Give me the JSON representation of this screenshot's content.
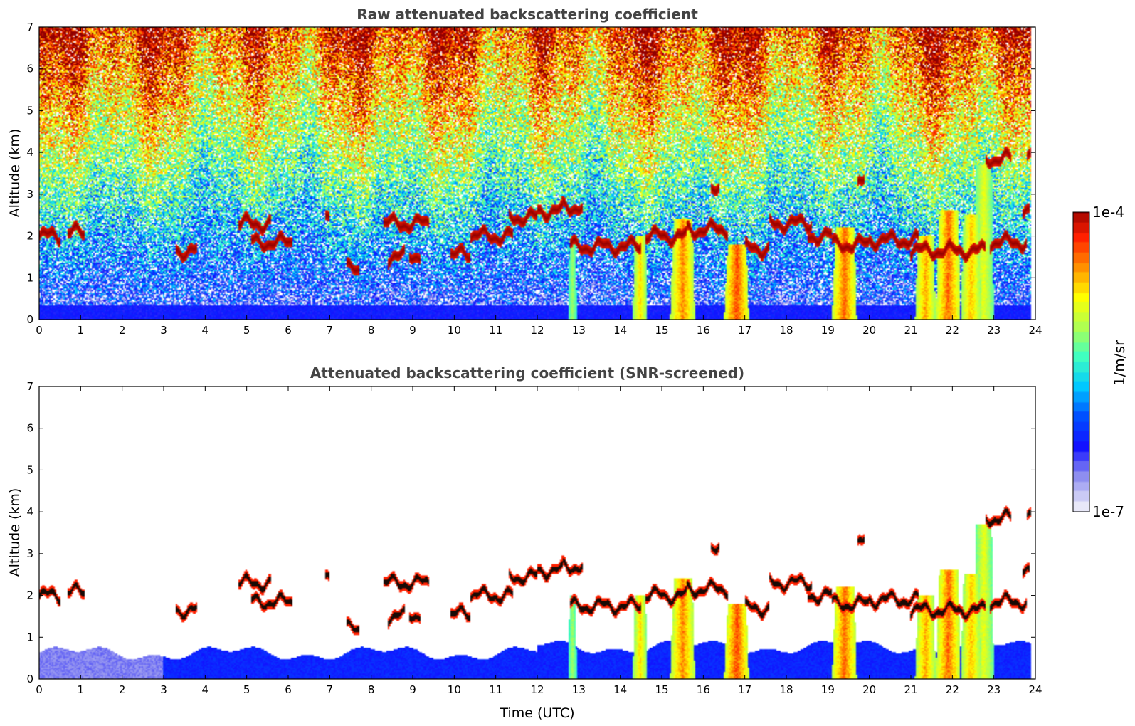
{
  "chart_data": [
    {
      "type": "heatmap",
      "title": "Raw attenuated backscattering coefficient",
      "xlabel": "",
      "ylabel": "Altitude (km)",
      "xlim": [
        0,
        24
      ],
      "ylim": [
        0,
        7
      ],
      "xticks": [
        0,
        1,
        2,
        3,
        4,
        5,
        6,
        7,
        8,
        9,
        10,
        11,
        12,
        13,
        14,
        15,
        16,
        17,
        18,
        19,
        20,
        21,
        22,
        23,
        24
      ],
      "yticks": [
        0,
        1,
        2,
        3,
        4,
        5,
        6,
        7
      ],
      "screened": false,
      "features": {
        "cloud_layers": [
          {
            "t0": 0.0,
            "t1": 0.5,
            "alt": 2.0
          },
          {
            "t0": 0.7,
            "t1": 1.1,
            "alt": 2.08
          },
          {
            "t0": 3.3,
            "t1": 3.8,
            "alt": 1.65
          },
          {
            "t0": 4.8,
            "t1": 5.6,
            "alt": 2.3
          },
          {
            "t0": 5.1,
            "t1": 6.1,
            "alt": 1.85
          },
          {
            "t0": 6.9,
            "t1": 7.0,
            "alt": 2.4
          },
          {
            "t0": 7.4,
            "t1": 7.7,
            "alt": 1.2
          },
          {
            "t0": 8.3,
            "t1": 9.4,
            "alt": 2.3
          },
          {
            "t0": 8.4,
            "t1": 8.8,
            "alt": 1.5
          },
          {
            "t0": 8.9,
            "t1": 9.2,
            "alt": 1.55
          },
          {
            "t0": 9.9,
            "t1": 10.4,
            "alt": 1.55
          },
          {
            "t0": 10.4,
            "t1": 11.4,
            "alt": 2.0
          },
          {
            "t0": 11.3,
            "t1": 12.0,
            "alt": 2.45
          },
          {
            "t0": 12.0,
            "t1": 12.6,
            "alt": 2.6
          },
          {
            "t0": 12.6,
            "t1": 13.1,
            "alt": 2.7
          },
          {
            "t0": 12.8,
            "t1": 14.5,
            "alt": 1.75
          },
          {
            "t0": 14.6,
            "t1": 15.6,
            "alt": 2.0
          },
          {
            "t0": 15.6,
            "t1": 16.6,
            "alt": 2.15
          },
          {
            "t0": 16.2,
            "t1": 16.4,
            "alt": 3.2
          },
          {
            "t0": 17.0,
            "t1": 17.6,
            "alt": 1.7
          },
          {
            "t0": 17.6,
            "t1": 18.6,
            "alt": 2.3
          },
          {
            "t0": 18.5,
            "t1": 19.1,
            "alt": 2.0
          },
          {
            "t0": 19.1,
            "t1": 20.0,
            "alt": 1.8
          },
          {
            "t0": 19.7,
            "t1": 19.9,
            "alt": 3.35
          },
          {
            "t0": 20.0,
            "t1": 21.2,
            "alt": 1.9
          },
          {
            "t0": 21.0,
            "t1": 22.8,
            "alt": 1.65
          },
          {
            "t0": 22.8,
            "t1": 23.4,
            "alt": 3.85
          },
          {
            "t0": 22.9,
            "t1": 23.8,
            "alt": 1.85
          },
          {
            "t0": 23.8,
            "t1": 23.95,
            "alt": 3.9
          },
          {
            "t0": 23.7,
            "t1": 23.85,
            "alt": 2.5
          }
        ],
        "precipitation_columns": [
          {
            "t0": 12.75,
            "t1": 12.95,
            "top": 2.0,
            "strength": 0.45
          },
          {
            "t0": 14.3,
            "t1": 14.65,
            "top": 2.0,
            "strength": 0.7
          },
          {
            "t0": 15.2,
            "t1": 15.8,
            "top": 2.4,
            "strength": 0.85
          },
          {
            "t0": 16.5,
            "t1": 17.1,
            "top": 1.8,
            "strength": 0.95
          },
          {
            "t0": 19.1,
            "t1": 19.7,
            "top": 2.2,
            "strength": 0.9
          },
          {
            "t0": 21.1,
            "t1": 21.6,
            "top": 2.0,
            "strength": 0.8
          },
          {
            "t0": 21.6,
            "t1": 22.2,
            "top": 2.6,
            "strength": 0.9
          },
          {
            "t0": 22.2,
            "t1": 22.7,
            "top": 2.5,
            "strength": 0.75
          },
          {
            "t0": 22.5,
            "t1": 23.0,
            "top": 3.7,
            "strength": 0.6
          }
        ]
      }
    },
    {
      "type": "heatmap",
      "title": "Attenuated backscattering coefficient (SNR-screened)",
      "xlabel": "Time (UTC)",
      "ylabel": "Altitude (km)",
      "xlim": [
        0,
        24
      ],
      "ylim": [
        0,
        7
      ],
      "xticks": [
        0,
        1,
        2,
        3,
        4,
        5,
        6,
        7,
        8,
        9,
        10,
        11,
        12,
        13,
        14,
        15,
        16,
        17,
        18,
        19,
        20,
        21,
        22,
        23,
        24
      ],
      "yticks": [
        0,
        1,
        2,
        3,
        4,
        5,
        6,
        7
      ],
      "screened": true
    }
  ],
  "colorbar": {
    "label": "1/m/sr",
    "max_label": "1e-4",
    "min_label": "1e-7",
    "scale": "log",
    "range": [
      1e-07,
      0.0001
    ],
    "colormap": [
      "#e8e8f8",
      "#8e8ef0",
      "#1212ff",
      "#0050ff",
      "#00c8ff",
      "#40ffc0",
      "#b0ff50",
      "#ffff00",
      "#ff9000",
      "#ff2000",
      "#900000"
    ]
  }
}
